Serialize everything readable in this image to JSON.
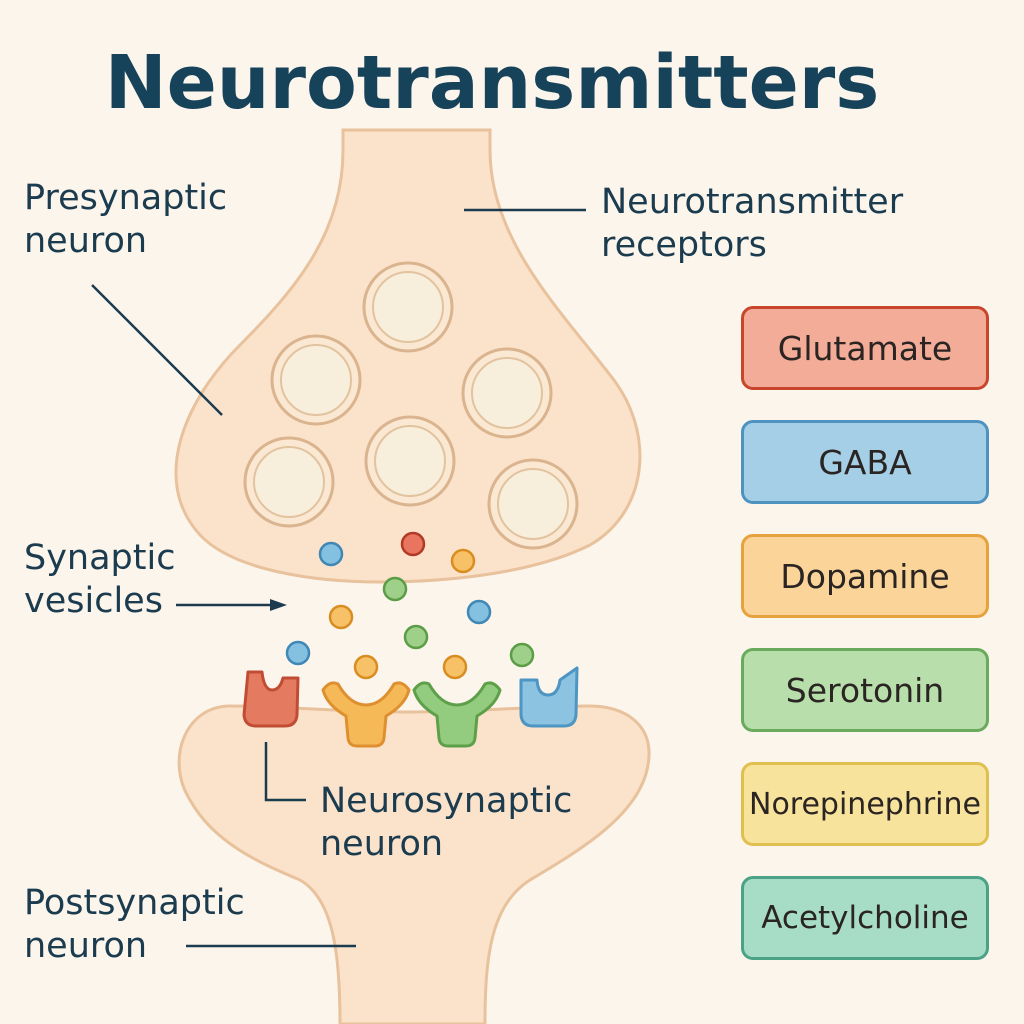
{
  "title": "Neurotransmitters",
  "labels": {
    "presynaptic": [
      "Presynaptic",
      "neuron"
    ],
    "receptors": [
      "Neurotransmitter",
      "receptors"
    ],
    "vesicles": [
      "Synaptic",
      "vesicles"
    ],
    "neurosynaptic": [
      "Neurosynaptic",
      "neuron"
    ],
    "postsynaptic": [
      "Postsynaptic",
      "neuron"
    ]
  },
  "neurotransmitters": [
    {
      "name": "Glutamate",
      "fill": "#f2ac98",
      "border": "#c8472c"
    },
    {
      "name": "GABA",
      "fill": "#a5cfe6",
      "border": "#4e93c0"
    },
    {
      "name": "Dopamine",
      "fill": "#fad498",
      "border": "#e6a23c"
    },
    {
      "name": "Serotonin",
      "fill": "#b7deab",
      "border": "#6aaa5c"
    },
    {
      "name": "Norepinephrine",
      "fill": "#f8e39c",
      "border": "#dfc04f"
    },
    {
      "name": "Acetylcholine",
      "fill": "#a7ddc7",
      "border": "#4aa287"
    }
  ],
  "colors": {
    "background": "#fcf5ec",
    "neuron_fill": "#fbe2ca",
    "neuron_outline": "#e8c29c",
    "vesicle_fill": "#fbebd3",
    "title": "#17435a",
    "text": "#1b3b4f"
  },
  "molecule_colors": [
    "#5aa6d0",
    "#d8543c",
    "#f0ad43",
    "#7dbe68"
  ],
  "receptor_colors": [
    "#e17458",
    "#f5b650",
    "#8bc775",
    "#84bddb"
  ]
}
